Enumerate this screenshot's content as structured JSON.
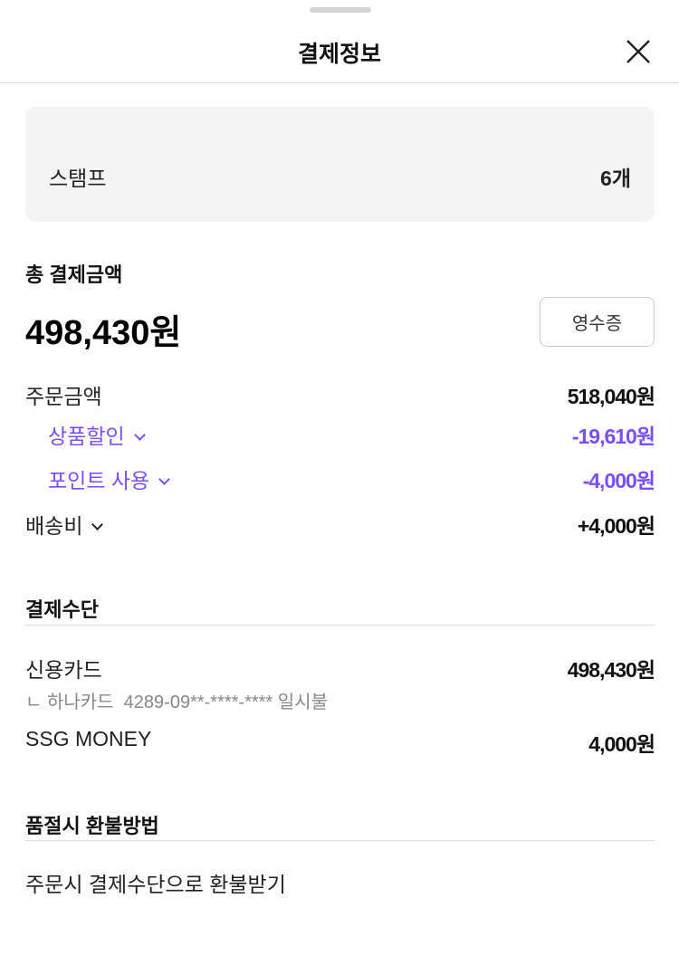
{
  "header": {
    "title": "결제정보",
    "close_icon": "close-icon"
  },
  "stamp": {
    "label": "스탬프",
    "value": "6개"
  },
  "total": {
    "label": "총 결제금액",
    "amount": "498,430원",
    "receipt_button": "영수증"
  },
  "breakdown": [
    {
      "label": "주문금액",
      "value": "518,040원",
      "expandable": false,
      "accent": false
    },
    {
      "label": "상품할인",
      "value": "-19,610원",
      "expandable": true,
      "accent": true
    },
    {
      "label": "포인트 사용",
      "value": "-4,000원",
      "expandable": true,
      "accent": true
    },
    {
      "label": "배송비",
      "value": "+4,000원",
      "expandable": true,
      "accent": false
    }
  ],
  "payment": {
    "title": "결제수단",
    "methods": [
      {
        "label": "신용카드",
        "value": "498,430원",
        "detail": "ㄴ 하나카드  4289-09**-****-**** 일시불"
      },
      {
        "label": "SSG MONEY",
        "value": "4,000원"
      }
    ]
  },
  "refund": {
    "title": "품절시 환불방법",
    "text": "주문시 결제수단으로 환불받기"
  },
  "colors": {
    "accent": "#7a4dff",
    "stamp_bg": "#f4f4f4"
  }
}
